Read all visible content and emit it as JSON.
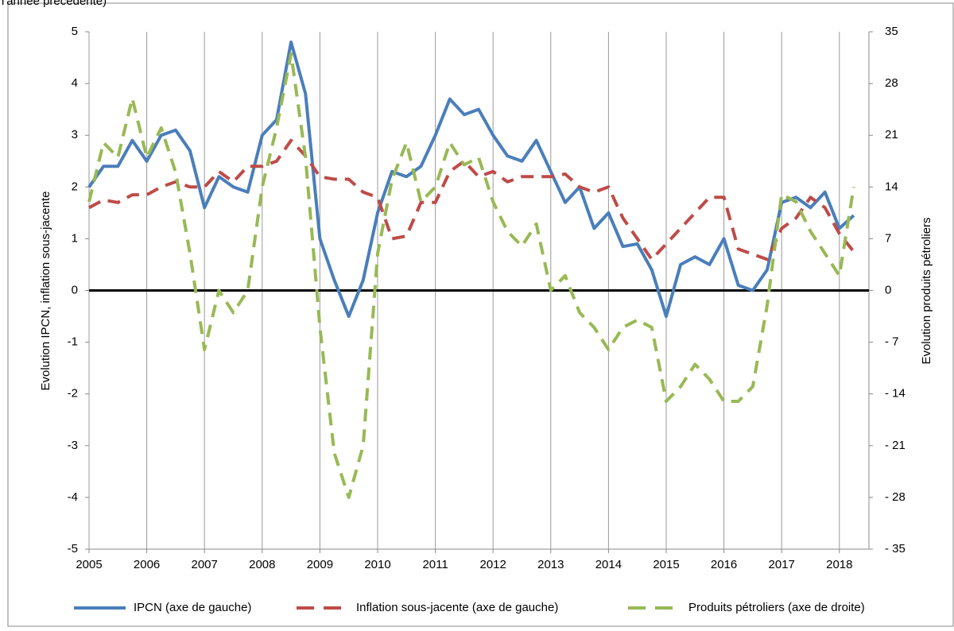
{
  "chart_data": {
    "type": "line",
    "title": "l'année précédente)",
    "y_label": "Evolution IPCN, inflation sous-jacente",
    "y2_label": "Evolution produits pétroliers",
    "categories": [
      "2005",
      null,
      null,
      null,
      "2006",
      null,
      null,
      null,
      "2007",
      null,
      null,
      null,
      "2008",
      null,
      null,
      null,
      "2009",
      null,
      null,
      null,
      "2010",
      null,
      null,
      null,
      "2011",
      null,
      null,
      null,
      "2012",
      null,
      null,
      null,
      "2013",
      null,
      null,
      null,
      "2014",
      null,
      null,
      null,
      "2015",
      null,
      null,
      null,
      "2016",
      null,
      null,
      null,
      "2017",
      null,
      null,
      null,
      "2018",
      null
    ],
    "series": [
      {
        "name": "IPCN (axe de gauche)",
        "color": "#4a7ebb",
        "style": "solid",
        "values": [
          2.0,
          2.4,
          2.4,
          2.9,
          2.5,
          3.0,
          3.1,
          2.7,
          1.6,
          2.2,
          2.0,
          1.9,
          3.0,
          3.3,
          4.8,
          3.8,
          1.0,
          0.2,
          -0.5,
          0.2,
          1.5,
          2.3,
          2.2,
          2.4,
          3.0,
          3.7,
          3.4,
          3.5,
          3.0,
          2.6,
          2.5,
          2.9,
          2.3,
          1.7,
          2.0,
          1.2,
          1.5,
          0.85,
          0.9,
          0.4,
          -0.5,
          0.5,
          0.65,
          0.5,
          1.0,
          0.1,
          0.0,
          0.4,
          1.7,
          1.8,
          1.6,
          1.9,
          1.2,
          1.45
        ]
      },
      {
        "name": "Inflation sous-jacente (axe de gauche)",
        "color": "#be4b48",
        "style": "dashed",
        "values": [
          1.6,
          1.75,
          1.7,
          1.85,
          1.85,
          2.0,
          2.1,
          2.0,
          2.0,
          2.3,
          2.1,
          2.4,
          2.4,
          2.5,
          2.9,
          2.6,
          2.2,
          2.15,
          2.15,
          1.9,
          1.8,
          1.0,
          1.05,
          1.7,
          1.7,
          2.3,
          2.5,
          2.2,
          2.3,
          2.1,
          2.2,
          2.2,
          2.2,
          2.25,
          2.0,
          1.9,
          2.0,
          1.4,
          1.0,
          0.6,
          0.9,
          1.2,
          1.5,
          1.8,
          1.8,
          0.8,
          0.7,
          0.6,
          1.2,
          1.4,
          1.8,
          1.6,
          1.1,
          0.75
        ]
      },
      {
        "name": "Produits pétroliers (axe de droite)",
        "color": "#98b954",
        "style": "dashed",
        "axis": "y2",
        "values": [
          12,
          20,
          18,
          26,
          18,
          22,
          16,
          5,
          -8,
          0,
          -3,
          0,
          14,
          22,
          32,
          18,
          -5,
          -22,
          -28,
          -21,
          5,
          15,
          20,
          12,
          14,
          20,
          17,
          18,
          12,
          8,
          6,
          9,
          0,
          2,
          -3,
          -5,
          -8,
          -5,
          -4,
          -5,
          -15,
          -13,
          -10,
          -12,
          -15,
          -15,
          -13,
          -2,
          13,
          12,
          8,
          5,
          2,
          14
        ]
      }
    ],
    "ylim": [
      -5,
      5
    ],
    "yticks": [
      -5,
      -4,
      -3,
      -2,
      -1,
      0,
      1,
      2,
      3,
      4,
      5
    ],
    "y2lim": [
      -35,
      35
    ],
    "y2ticks": [
      {
        "value": -35,
        "label": "- 35"
      },
      {
        "value": -28,
        "label": "- 28"
      },
      {
        "value": -21,
        "label": "- 21"
      },
      {
        "value": -14,
        "label": "- 14"
      },
      {
        "value": -7,
        "label": "- 7"
      },
      0,
      7,
      14,
      21,
      28,
      35
    ],
    "grid": "x",
    "legend": "bottom"
  }
}
